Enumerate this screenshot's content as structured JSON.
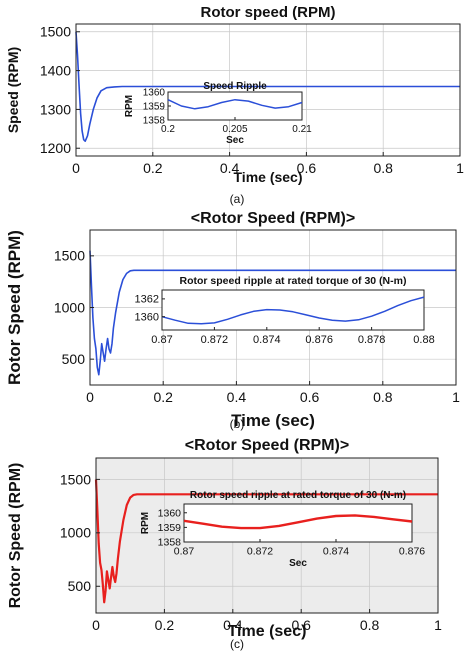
{
  "chart_data": [
    {
      "type": "line",
      "caption": "(a)",
      "title": "Rotor speed (RPM)",
      "xlabel": "Time (sec)",
      "ylabel": "Speed (RPM)",
      "xlim": [
        0,
        1
      ],
      "ylim": [
        1180,
        1520
      ],
      "xticks": [
        "0",
        "0.2",
        "0.4",
        "0.6",
        "0.8",
        "1"
      ],
      "yticks": [
        "1200",
        "1300",
        "1400",
        "1500"
      ],
      "grid": true,
      "line_color": "#2b4fd8",
      "background": "#ffffff",
      "series": [
        {
          "x": [
            0,
            0.004,
            0.008,
            0.012,
            0.016,
            0.02,
            0.024,
            0.03,
            0.036,
            0.045,
            0.055,
            0.065,
            0.08,
            0.1,
            0.12,
            0.15,
            0.2,
            0.3,
            0.4,
            0.5,
            0.6,
            0.7,
            0.8,
            0.9,
            1.0
          ],
          "y": [
            1500,
            1440,
            1360,
            1290,
            1245,
            1222,
            1218,
            1232,
            1262,
            1300,
            1330,
            1348,
            1356,
            1358,
            1359,
            1359,
            1359,
            1359,
            1359,
            1359,
            1359,
            1359,
            1359,
            1359,
            1359
          ]
        }
      ],
      "inset": {
        "title": "Speed Ripple",
        "xlabel": "Sec",
        "ylabel": "RPM",
        "xlim": [
          0.2,
          0.21
        ],
        "ylim": [
          1358,
          1360
        ],
        "xticks": [
          "0.2",
          "0.205",
          "0.21"
        ],
        "yticks": [
          "1358",
          "1359",
          "1360"
        ],
        "series": [
          {
            "x": [
              0.2,
              0.201,
              0.202,
              0.203,
              0.204,
              0.205,
              0.206,
              0.207,
              0.208,
              0.209,
              0.21
            ],
            "y": [
              1359.45,
              1359.0,
              1358.8,
              1358.95,
              1359.25,
              1359.45,
              1359.35,
              1359.05,
              1358.85,
              1358.95,
              1359.25
            ]
          }
        ]
      }
    },
    {
      "type": "line",
      "caption": "(b)",
      "title": "<Rotor Speed (RPM)>",
      "xlabel": "Time (sec)",
      "ylabel": "Rotor Speed (RPM)",
      "xlim": [
        0,
        1
      ],
      "ylim": [
        250,
        1750
      ],
      "xticks": [
        "0",
        "0.2",
        "0.4",
        "0.6",
        "0.8",
        "1"
      ],
      "yticks": [
        "500",
        "1000",
        "1500"
      ],
      "grid": true,
      "line_color": "#2b4fd8",
      "background": "#ffffff",
      "series": [
        {
          "x": [
            0,
            0.004,
            0.008,
            0.012,
            0.016,
            0.02,
            0.024,
            0.028,
            0.032,
            0.036,
            0.04,
            0.044,
            0.048,
            0.052,
            0.056,
            0.06,
            0.064,
            0.07,
            0.08,
            0.09,
            0.1,
            0.11,
            0.12,
            0.13,
            0.15,
            0.2,
            0.4,
            0.6,
            0.8,
            1.0
          ],
          "y": [
            1550,
            1200,
            900,
            700,
            600,
            420,
            350,
            480,
            650,
            560,
            480,
            600,
            700,
            600,
            560,
            650,
            800,
            950,
            1150,
            1270,
            1330,
            1355,
            1360,
            1360,
            1360,
            1360,
            1360,
            1360,
            1360,
            1360
          ]
        }
      ],
      "inset": {
        "title": "Rotor speed ripple at rated torque of 30 (N-m)",
        "xlabel": "",
        "ylabel": "",
        "xlim": [
          0.87,
          0.88
        ],
        "ylim": [
          1358.5,
          1363
        ],
        "xticks": [
          "0.87",
          "0.872",
          "0.874",
          "0.876",
          "0.878",
          "0.88"
        ],
        "yticks": [
          "1360",
          "1362"
        ],
        "series": [
          {
            "x": [
              0.87,
              0.8705,
              0.871,
              0.8715,
              0.872,
              0.8725,
              0.873,
              0.8735,
              0.874,
              0.8745,
              0.875,
              0.8755,
              0.876,
              0.8765,
              0.877,
              0.8775,
              0.878,
              0.8785,
              0.879,
              0.8795,
              0.88
            ],
            "y": [
              1360.0,
              1359.6,
              1359.25,
              1359.2,
              1359.3,
              1359.7,
              1360.2,
              1360.6,
              1360.8,
              1360.75,
              1360.55,
              1360.2,
              1359.85,
              1359.6,
              1359.5,
              1359.65,
              1360.05,
              1360.6,
              1361.25,
              1361.8,
              1362.2
            ]
          }
        ]
      }
    },
    {
      "type": "line",
      "caption": "(c)",
      "title": "<Rotor Speed (RPM)>",
      "xlabel": "Time (sec)",
      "ylabel": "Rotor Speed (RPM)",
      "xlim": [
        0,
        1
      ],
      "ylim": [
        250,
        1700
      ],
      "xticks": [
        "0",
        "0.2",
        "0.4",
        "0.6",
        "0.8",
        "1"
      ],
      "yticks": [
        "500",
        "1000",
        "1500"
      ],
      "grid": true,
      "line_color": "#e8201e",
      "background": "#ececec",
      "series": [
        {
          "x": [
            0,
            0.004,
            0.008,
            0.012,
            0.016,
            0.02,
            0.024,
            0.028,
            0.032,
            0.036,
            0.04,
            0.044,
            0.048,
            0.052,
            0.056,
            0.06,
            0.064,
            0.07,
            0.08,
            0.09,
            0.1,
            0.11,
            0.12,
            0.13,
            0.15,
            0.2,
            0.4,
            0.6,
            0.8,
            1.0
          ],
          "y": [
            1500,
            1200,
            900,
            720,
            650,
            520,
            350,
            460,
            640,
            560,
            480,
            580,
            680,
            590,
            540,
            620,
            760,
            920,
            1120,
            1260,
            1330,
            1355,
            1360,
            1360,
            1360,
            1360,
            1360,
            1360,
            1360,
            1360
          ]
        }
      ],
      "inset": {
        "title": "Rotor speed ripple at rated torque of 30 (N-m)",
        "xlabel": "Sec",
        "ylabel": "RPM",
        "xlim": [
          0.87,
          0.876
        ],
        "ylim": [
          1358,
          1360.6
        ],
        "xticks": [
          "0.87",
          "0.872",
          "0.874",
          "0.876"
        ],
        "yticks": [
          "1358",
          "1359",
          "1360"
        ],
        "series": [
          {
            "x": [
              0.87,
              0.8705,
              0.871,
              0.8715,
              0.872,
              0.8725,
              0.873,
              0.8735,
              0.874,
              0.8745,
              0.875,
              0.8755,
              0.876
            ],
            "y": [
              1359.45,
              1359.25,
              1359.05,
              1358.95,
              1358.95,
              1359.1,
              1359.35,
              1359.6,
              1359.78,
              1359.82,
              1359.72,
              1359.55,
              1359.4
            ]
          }
        ]
      }
    }
  ]
}
